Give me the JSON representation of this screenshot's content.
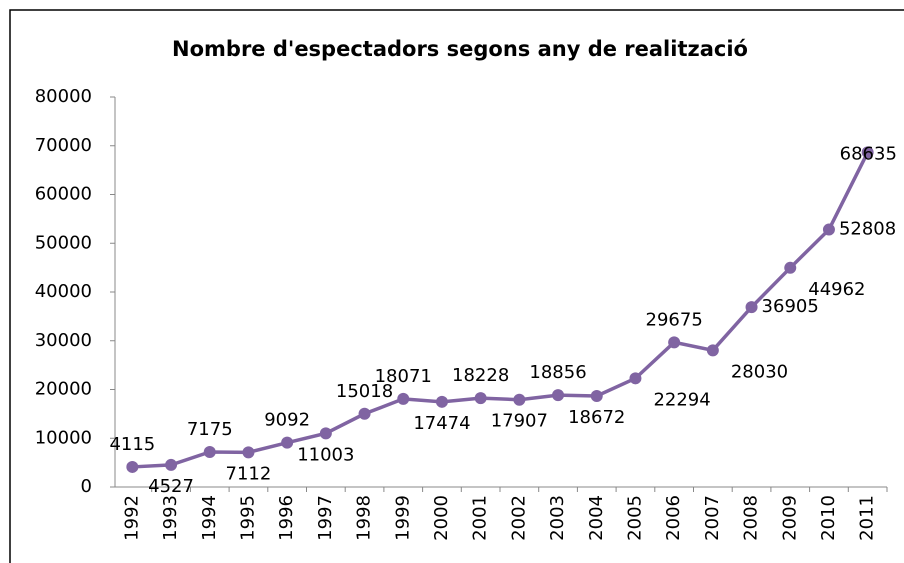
{
  "chart_data": {
    "type": "line",
    "title": "Nombre d'espectadors segons any de realització",
    "categories": [
      "1992",
      "1993",
      "1994",
      "1995",
      "1996",
      "1997",
      "1998",
      "1999",
      "2000",
      "2001",
      "2002",
      "2003",
      "2004",
      "2005",
      "2006",
      "2007",
      "2008",
      "2009",
      "2010",
      "2011"
    ],
    "values": [
      4115,
      4527,
      7175,
      7112,
      9092,
      11003,
      15018,
      18071,
      17474,
      18228,
      17907,
      18856,
      18672,
      22294,
      29675,
      28030,
      36905,
      44962,
      52808,
      68635
    ],
    "color": "#8064a2",
    "ylim": [
      0,
      80000
    ],
    "yticks": [
      0,
      10000,
      20000,
      30000,
      40000,
      50000,
      60000,
      70000,
      80000
    ],
    "grid": false
  }
}
